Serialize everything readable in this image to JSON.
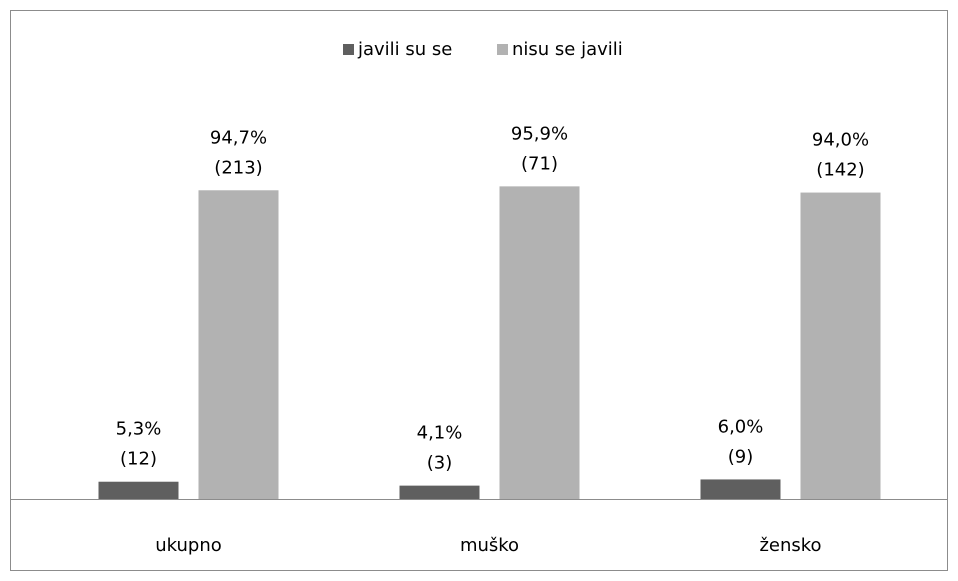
{
  "chart_data": {
    "type": "bar",
    "categories": [
      "ukupno",
      "muško",
      "žensko"
    ],
    "series": [
      {
        "name": "javili su se",
        "color": "#5f5f5f",
        "values": [
          5.3,
          4.1,
          6.0
        ],
        "value_labels": [
          [
            "5,3%",
            "(12)"
          ],
          [
            "4,1%",
            "(3)"
          ],
          [
            "6,0%",
            "(9)"
          ]
        ]
      },
      {
        "name": "nisu se javili",
        "color": "#b2b2b2",
        "values": [
          94.7,
          95.9,
          94.0
        ],
        "value_labels": [
          [
            "94,7%",
            "(213)"
          ],
          [
            "95,9%",
            "(71)"
          ],
          [
            "94,0%",
            "(142)"
          ]
        ]
      }
    ],
    "ylim": [
      0,
      100
    ],
    "legend": "top"
  }
}
